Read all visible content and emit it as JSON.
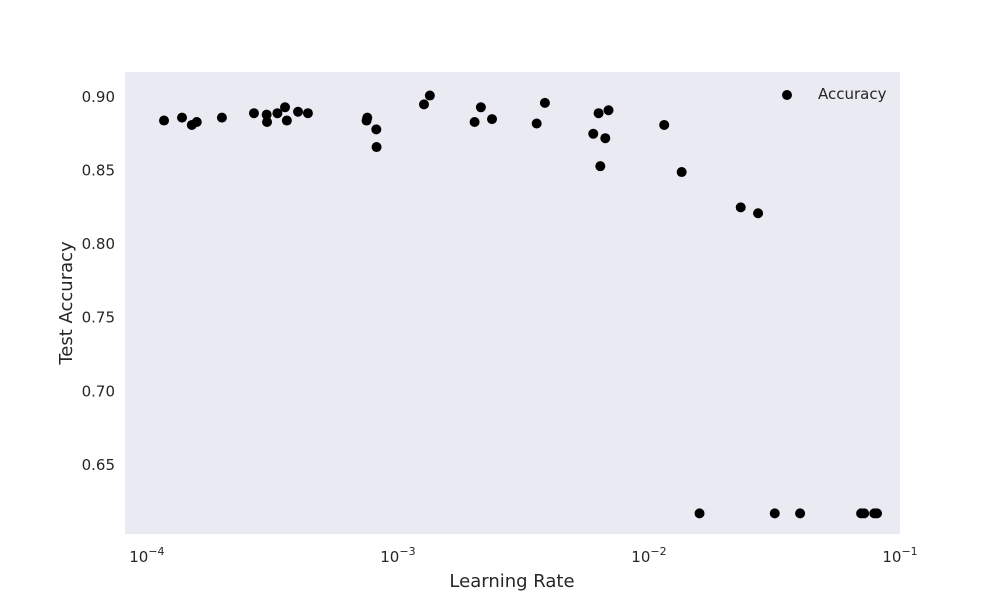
{
  "chart_data": {
    "type": "scatter",
    "title": "",
    "xlabel": "Learning Rate",
    "ylabel": "Test Accuracy",
    "xscale": "log",
    "xlim": [
      8.18e-05,
      0.1
    ],
    "ylim": [
      0.603,
      0.917
    ],
    "xticks": [
      {
        "value": 0.0001,
        "base": "10",
        "exp": "−4"
      },
      {
        "value": 0.001,
        "base": "10",
        "exp": "−3"
      },
      {
        "value": 0.01,
        "base": "10",
        "exp": "−2"
      },
      {
        "value": 0.1,
        "base": "10",
        "exp": "−1"
      }
    ],
    "yticks": [
      {
        "value": 0.65,
        "label": "0.65"
      },
      {
        "value": 0.7,
        "label": "0.70"
      },
      {
        "value": 0.75,
        "label": "0.75"
      },
      {
        "value": 0.8,
        "label": "0.80"
      },
      {
        "value": 0.85,
        "label": "0.85"
      },
      {
        "value": 0.9,
        "label": "0.90"
      }
    ],
    "grid": false,
    "background_color": "#eaeaf2",
    "marker_color": "#000000",
    "legend_position": "top-right",
    "series": [
      {
        "name": "Accuracy",
        "points": [
          {
            "x": 0.000117,
            "y": 0.884
          },
          {
            "x": 0.000138,
            "y": 0.886
          },
          {
            "x": 0.000151,
            "y": 0.881
          },
          {
            "x": 0.000158,
            "y": 0.883
          },
          {
            "x": 0.000199,
            "y": 0.886
          },
          {
            "x": 0.000267,
            "y": 0.889
          },
          {
            "x": 0.0003,
            "y": 0.888
          },
          {
            "x": 0.000301,
            "y": 0.883
          },
          {
            "x": 0.000331,
            "y": 0.889
          },
          {
            "x": 0.000355,
            "y": 0.893
          },
          {
            "x": 0.000361,
            "y": 0.884
          },
          {
            "x": 0.0004,
            "y": 0.89
          },
          {
            "x": 0.000438,
            "y": 0.889
          },
          {
            "x": 0.00075,
            "y": 0.884
          },
          {
            "x": 0.000755,
            "y": 0.886
          },
          {
            "x": 0.00082,
            "y": 0.878
          },
          {
            "x": 0.000822,
            "y": 0.866
          },
          {
            "x": 0.00127,
            "y": 0.895
          },
          {
            "x": 0.00134,
            "y": 0.901
          },
          {
            "x": 0.00202,
            "y": 0.883
          },
          {
            "x": 0.00214,
            "y": 0.893
          },
          {
            "x": 0.00237,
            "y": 0.885
          },
          {
            "x": 0.00357,
            "y": 0.882
          },
          {
            "x": 0.00385,
            "y": 0.896
          },
          {
            "x": 0.006,
            "y": 0.875
          },
          {
            "x": 0.0063,
            "y": 0.889
          },
          {
            "x": 0.0064,
            "y": 0.853
          },
          {
            "x": 0.0067,
            "y": 0.872
          },
          {
            "x": 0.0069,
            "y": 0.891
          },
          {
            "x": 0.0115,
            "y": 0.881
          },
          {
            "x": 0.0135,
            "y": 0.849
          },
          {
            "x": 0.0159,
            "y": 0.617
          },
          {
            "x": 0.0232,
            "y": 0.825
          },
          {
            "x": 0.0272,
            "y": 0.821
          },
          {
            "x": 0.0317,
            "y": 0.617
          },
          {
            "x": 0.04,
            "y": 0.617
          },
          {
            "x": 0.07,
            "y": 0.617
          },
          {
            "x": 0.072,
            "y": 0.617
          },
          {
            "x": 0.079,
            "y": 0.617
          },
          {
            "x": 0.081,
            "y": 0.617
          }
        ]
      }
    ]
  }
}
